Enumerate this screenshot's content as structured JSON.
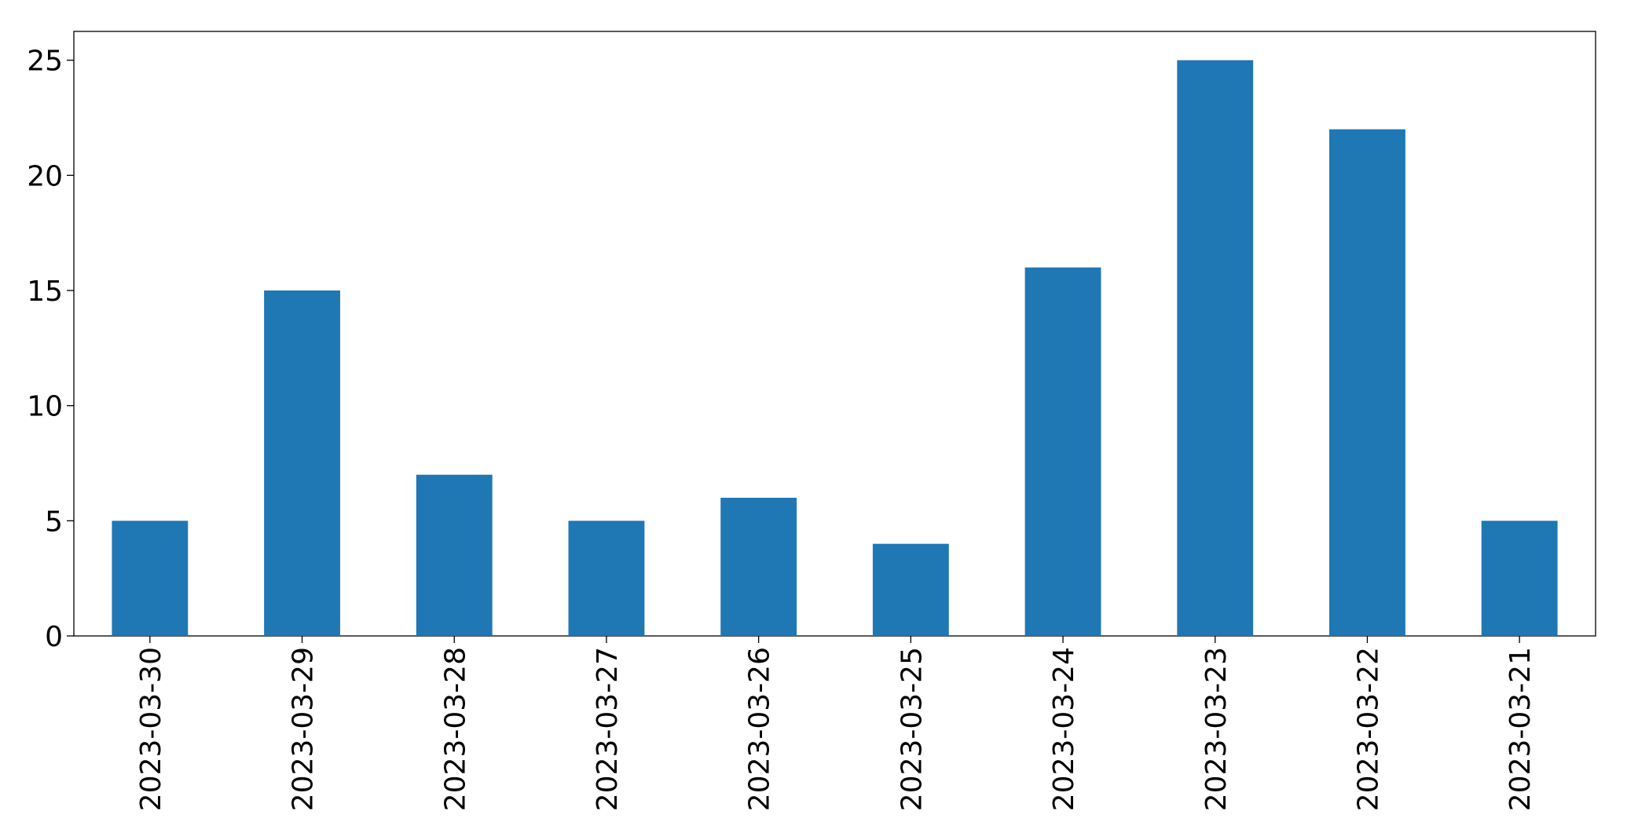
{
  "chart_data": {
    "type": "bar",
    "categories": [
      "2023-03-30",
      "2023-03-29",
      "2023-03-28",
      "2023-03-27",
      "2023-03-26",
      "2023-03-25",
      "2023-03-24",
      "2023-03-23",
      "2023-03-22",
      "2023-03-21"
    ],
    "values": [
      5,
      15,
      7,
      5,
      6,
      4,
      16,
      25,
      22,
      5
    ],
    "color": "#1f77b4",
    "ylim": [
      0,
      26.25
    ],
    "yticks": [
      0,
      5,
      10,
      15,
      20,
      25
    ],
    "grid": false
  }
}
